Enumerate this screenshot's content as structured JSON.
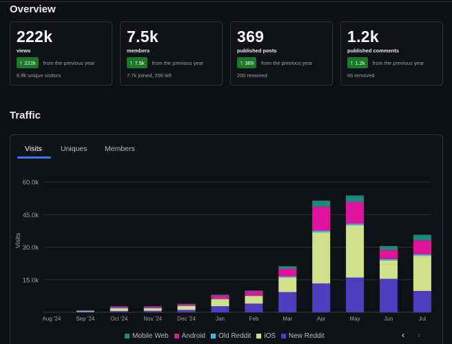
{
  "overview": {
    "title": "Overview",
    "cards": [
      {
        "value": "222k",
        "label": "views",
        "badge": "222k",
        "from": "from the previous year",
        "sub": "6.9k unique visitors"
      },
      {
        "value": "7.5k",
        "label": "members",
        "badge": "7.5k",
        "from": "from the previous year",
        "sub": "7.7k joined, 256 left"
      },
      {
        "value": "369",
        "label": "published posts",
        "badge": "369",
        "from": "from the previous year",
        "sub": "200 removed"
      },
      {
        "value": "1.2k",
        "label": "published comments",
        "badge": "1.2k",
        "from": "from the previous year",
        "sub": "66 removed"
      }
    ]
  },
  "traffic": {
    "title": "Traffic",
    "tabs": [
      "Visits",
      "Uniques",
      "Members"
    ],
    "active_tab": "Visits"
  },
  "icons": {
    "up_arrow": "arrow-up-icon",
    "prev": "chevron-left-icon",
    "next": "chevron-right-icon"
  },
  "colors": {
    "accent": "#2d7ff9",
    "badge_green": "#1a7a2b",
    "mobile_web": "#1b8a78",
    "android": "#e0149c",
    "old_reddit": "#3fb7d8",
    "ios": "#d1e08a",
    "new_reddit": "#4e3ebf"
  },
  "chart_data": {
    "type": "bar",
    "stacked": true,
    "ylabel": "Visits",
    "ylim": [
      0,
      60000
    ],
    "yticks": [
      15000,
      30000,
      45000,
      60000
    ],
    "ytick_labels": [
      "15.0k",
      "30.0k",
      "45.0k",
      "60.0k"
    ],
    "categories": [
      "Aug '24",
      "Sep '24",
      "Oct '24",
      "Nov '24",
      "Dec '24",
      "Jan",
      "Feb",
      "Mar",
      "Apr",
      "May",
      "Jun",
      "Jul"
    ],
    "series": [
      {
        "name": "New Reddit",
        "color": "#4e3ebf",
        "values": [
          0,
          200,
          600,
          700,
          1100,
          2800,
          4000,
          9300,
          13300,
          16000,
          15400,
          9800
        ]
      },
      {
        "name": "iOS",
        "color": "#d1e08a",
        "values": [
          0,
          300,
          1200,
          1100,
          1800,
          3200,
          3500,
          6800,
          23500,
          24000,
          8500,
          16200
        ]
      },
      {
        "name": "Old Reddit",
        "color": "#3fb7d8",
        "values": [
          0,
          100,
          100,
          100,
          100,
          200,
          200,
          400,
          800,
          800,
          600,
          700
        ]
      },
      {
        "name": "Android",
        "color": "#e0149c",
        "values": [
          0,
          200,
          700,
          700,
          700,
          1500,
          2000,
          3500,
          11000,
          10000,
          4200,
          6400
        ]
      },
      {
        "name": "Mobile Web",
        "color": "#1b8a78",
        "values": [
          0,
          100,
          200,
          200,
          200,
          400,
          300,
          1200,
          2800,
          3000,
          1800,
          2600
        ]
      }
    ],
    "legend": [
      "Mobile Web",
      "Android",
      "Old Reddit",
      "iOS",
      "New Reddit"
    ]
  }
}
